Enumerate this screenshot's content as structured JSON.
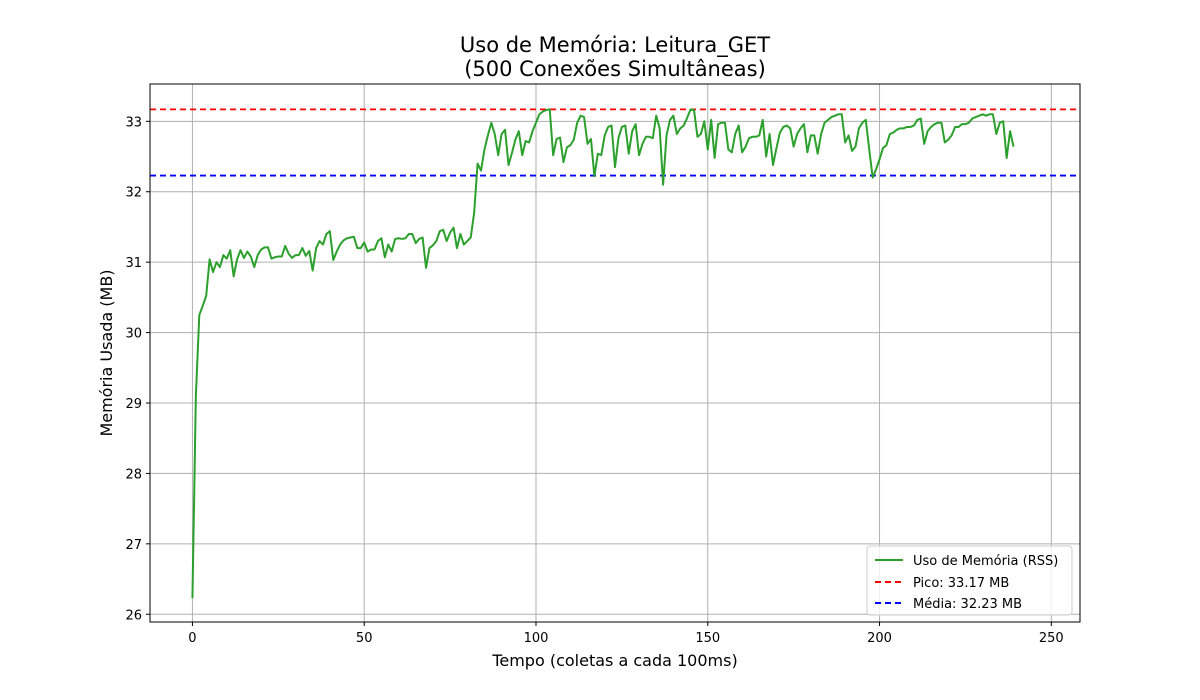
{
  "chart_data": {
    "type": "line",
    "title_line1": "Uso de Memória: Leitura_GET",
    "title_line2": "(500 Conexões Simultâneas)",
    "xlabel": "Tempo (coletas a cada 100ms)",
    "ylabel": "Memória Usada (MB)",
    "xlim": [
      -12.35,
      258.35
    ],
    "ylim": [
      25.89,
      33.53
    ],
    "xticks": [
      0,
      50,
      100,
      150,
      200,
      250
    ],
    "yticks": [
      26,
      27,
      28,
      29,
      30,
      31,
      32,
      33
    ],
    "grid": true,
    "legend_position": "lower right",
    "series": [
      {
        "name": "Uso de Memória (RSS)",
        "color": "#2ca02c",
        "values": [
          26.23,
          29.1,
          30.25,
          30.38,
          30.52,
          31.04,
          30.86,
          31.0,
          30.93,
          31.1,
          31.05,
          31.17,
          30.8,
          31.04,
          31.17,
          31.06,
          31.15,
          31.08,
          30.93,
          31.1,
          31.18,
          31.21,
          31.21,
          31.05,
          31.07,
          31.08,
          31.08,
          31.23,
          31.12,
          31.06,
          31.1,
          31.1,
          31.2,
          31.09,
          31.16,
          30.88,
          31.2,
          31.3,
          31.25,
          31.4,
          31.44,
          31.03,
          31.15,
          31.25,
          31.31,
          31.34,
          31.35,
          31.36,
          31.2,
          31.2,
          31.28,
          31.15,
          31.18,
          31.18,
          31.3,
          31.34,
          31.07,
          31.25,
          31.15,
          31.33,
          31.34,
          31.33,
          31.34,
          31.4,
          31.4,
          31.27,
          31.33,
          31.35,
          30.92,
          31.2,
          31.24,
          31.3,
          31.44,
          31.46,
          31.3,
          31.42,
          31.49,
          31.2,
          31.4,
          31.25,
          31.3,
          31.35,
          31.7,
          32.4,
          32.3,
          32.6,
          32.8,
          32.98,
          32.82,
          32.52,
          32.82,
          32.88,
          32.38,
          32.55,
          32.74,
          32.86,
          32.52,
          32.72,
          32.7,
          32.86,
          32.98,
          33.1,
          33.14,
          33.16,
          33.17,
          32.52,
          32.75,
          32.77,
          32.42,
          32.63,
          32.66,
          32.74,
          32.98,
          33.08,
          33.06,
          32.68,
          32.75,
          32.22,
          32.54,
          32.52,
          32.8,
          32.92,
          32.94,
          32.35,
          32.76,
          32.92,
          32.94,
          32.54,
          32.86,
          32.96,
          32.52,
          32.68,
          32.78,
          32.78,
          32.76,
          33.08,
          32.9,
          32.1,
          32.8,
          33.02,
          33.08,
          32.82,
          32.9,
          32.94,
          33.05,
          33.17,
          33.16,
          32.78,
          32.82,
          33.0,
          32.6,
          33.02,
          32.48,
          32.96,
          32.98,
          32.98,
          32.6,
          32.56,
          32.82,
          32.94,
          32.56,
          32.64,
          32.76,
          32.78,
          32.78,
          32.8,
          33.02,
          32.5,
          32.82,
          32.38,
          32.62,
          32.84,
          32.92,
          32.94,
          32.9,
          32.64,
          32.82,
          32.9,
          32.96,
          32.56,
          32.8,
          32.8,
          32.54,
          32.82,
          32.98,
          33.02,
          33.06,
          33.08,
          33.1,
          33.1,
          32.7,
          32.8,
          32.58,
          32.64,
          32.9,
          32.98,
          33.02,
          32.6,
          32.2,
          32.32,
          32.46,
          32.62,
          32.66,
          32.82,
          32.84,
          32.88,
          32.9,
          32.9,
          32.92,
          32.92,
          32.94,
          33.02,
          33.04,
          32.68,
          32.86,
          32.92,
          32.96,
          32.98,
          32.98,
          32.7,
          32.74,
          32.8,
          32.92,
          32.92,
          32.96,
          32.96,
          32.98,
          33.04,
          33.06,
          33.08,
          33.1,
          33.08,
          33.1,
          33.1,
          32.82,
          32.98,
          33.0,
          32.48,
          32.86,
          32.64
        ]
      }
    ],
    "reference_lines": [
      {
        "name": "Pico: 33.17 MB",
        "value": 33.17,
        "color": "#ff0000",
        "style": "dashed"
      },
      {
        "name": "Média: 32.23 MB",
        "value": 32.23,
        "color": "#0000ff",
        "style": "dashed"
      }
    ]
  }
}
